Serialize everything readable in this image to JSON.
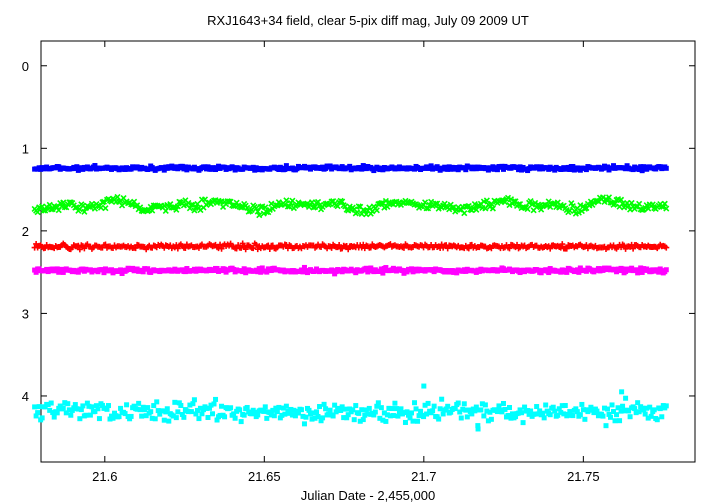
{
  "chart_data": {
    "type": "scatter",
    "title": "RXJ1643+34 field, clear 5-pix diff mag, July 09  2009 UT",
    "xlabel": "Julian Date - 2,455,000",
    "ylabel": "",
    "xlim": [
      21.58,
      21.785
    ],
    "ylim": [
      4.8,
      -0.3
    ],
    "y_reversed": true,
    "grid": false,
    "legend": "none",
    "x_ticks": [
      21.6,
      21.65,
      21.7,
      21.75
    ],
    "x_tick_labels": [
      "21.6",
      "21.65",
      "21.7",
      "21.75"
    ],
    "y_ticks": [
      0,
      1,
      2,
      3,
      4
    ],
    "y_tick_labels": [
      "0",
      "1",
      "2",
      "3",
      "4"
    ],
    "x_range": [
      21.578,
      21.776
    ],
    "points_per_series": 420,
    "series": [
      {
        "color": "#0000ff",
        "marker": "square",
        "mean": 1.24,
        "scatter": 0.012
      },
      {
        "color": "#00ff00",
        "marker": "x",
        "mean": 1.69,
        "scatter": 0.03,
        "wave_amp": 0.06
      },
      {
        "color": "#ff0000",
        "marker": "plus",
        "mean": 2.19,
        "scatter": 0.015
      },
      {
        "color": "#ff00ff",
        "marker": "square",
        "mean": 2.48,
        "scatter": 0.014
      },
      {
        "color": "#00ffff",
        "marker": "square",
        "mean": 4.19,
        "scatter": 0.06,
        "outliers": [
          {
            "x": 21.7,
            "y": 3.88
          },
          {
            "x": 21.762,
            "y": 3.95
          },
          {
            "x": 21.717,
            "y": 4.4
          }
        ]
      }
    ]
  }
}
